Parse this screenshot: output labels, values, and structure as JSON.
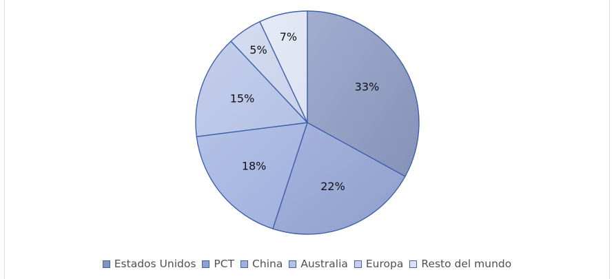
{
  "chart_data": {
    "type": "pie",
    "title": "",
    "categories": [
      "Estados Unidos",
      "PCT",
      "China",
      "Australia",
      "Europa",
      "Resto del mundo"
    ],
    "values": [
      33,
      22,
      18,
      15,
      5,
      7
    ],
    "data_labels": [
      "33%",
      "22%",
      "18%",
      "15%",
      "5%",
      "7%"
    ],
    "start_angle": "12 o'clock",
    "direction": "clockwise",
    "legend_position": "bottom",
    "colors": [
      "#8592b8",
      "#8d9fcc",
      "#9fb0dc",
      "#b4c1e4",
      "#c9d1ea",
      "#dde2f2"
    ],
    "gradient_light_colors": [
      "#a1aed0",
      "#a7b5de",
      "#b4c2e6",
      "#c4cfeb",
      "#d5dcf0",
      "#e6eaf6"
    ],
    "border_color": "#3f5fa8",
    "label_color": "#111111",
    "legend_text_color": "#505050"
  }
}
